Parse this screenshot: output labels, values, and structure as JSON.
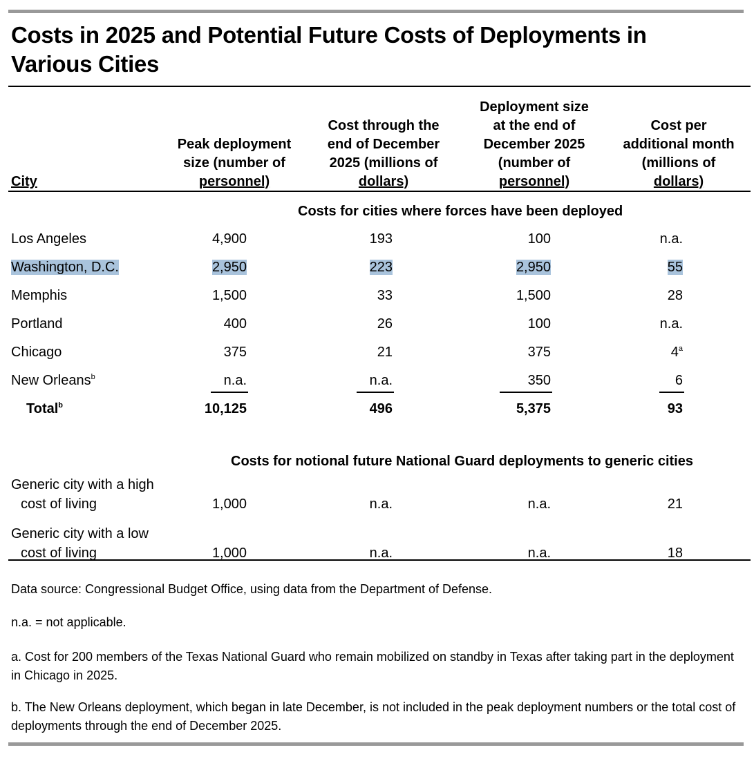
{
  "title_line1": "Costs in 2025 and Potential Future Costs of Deployments in",
  "title_line2": "Various Cities",
  "chart_data": {
    "type": "table",
    "columns": [
      "City",
      "Peak deployment size (number of personnel)",
      "Cost through the end of December 2025 (millions of dollars)",
      "Deployment size at the end of December 2025 (number of personnel)",
      "Cost per additional month (millions of dollars)"
    ],
    "section1": "Costs for cities where forces have been deployed",
    "section2": "Costs for notional future National Guard deployments to generic cities",
    "rows1": [
      [
        "Los Angeles",
        "4,900",
        "193",
        "100",
        "n.a."
      ],
      [
        "Washington, D.C.",
        "2,950",
        "223",
        "2,950",
        "55"
      ],
      [
        "Memphis",
        "1,500",
        "33",
        "1,500",
        "28"
      ],
      [
        "Portland",
        "400",
        "26",
        "100",
        "n.a."
      ],
      [
        "Chicago",
        "375",
        "21",
        "375",
        "4"
      ],
      [
        "New Orleans",
        "n.a.",
        "n.a.",
        "350",
        "6"
      ]
    ],
    "total": [
      "Total",
      "10,125",
      "496",
      "5,375",
      "93"
    ],
    "rows2": [
      [
        "Generic city with a high cost of living",
        "1,000",
        "n.a.",
        "n.a.",
        "21"
      ],
      [
        "Generic city with a low cost of living",
        "1,000",
        "n.a.",
        "n.a.",
        "18"
      ]
    ],
    "footnote_marks": {
      "chicago_cost": "a",
      "new_orleans": "b",
      "total": "b"
    },
    "highlighted_row": "Washington, D.C.",
    "highlight_color": "#a9c3dc"
  },
  "headers": {
    "city": "City",
    "peak": [
      "Peak deployment",
      "size (number of",
      "personnel)"
    ],
    "cost": [
      "Cost through the",
      "end of December",
      "2025 (millions of",
      "dollars)"
    ],
    "size_end": [
      "Deployment size",
      "at the end of",
      "December 2025",
      "(number of",
      "personnel)"
    ],
    "per_month": [
      "Cost per",
      "additional month",
      "(millions of",
      "dollars)"
    ]
  },
  "generic_labels": {
    "high": [
      "Generic city with a high",
      "cost of living"
    ],
    "low": [
      "Generic city with a low",
      "cost of living"
    ]
  },
  "notes": {
    "source": "Data source: Congressional Budget Office, using data from the Department of Defense.",
    "na": "n.a. = not applicable.",
    "a": "a. Cost for 200 members of the Texas National Guard who remain mobilized on standby in Texas after taking part in the deployment in Chicago in 2025.",
    "b": "b. The New Orleans deployment, which began in late December, is not included in the peak deployment numbers or the total cost of deployments through the end of December 2025."
  }
}
